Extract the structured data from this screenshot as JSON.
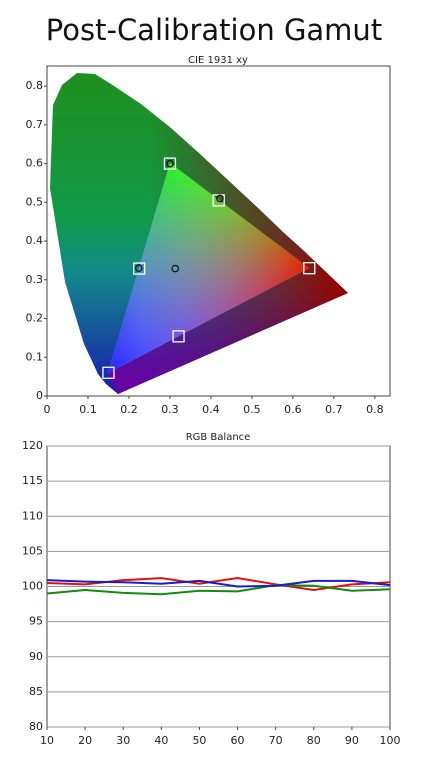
{
  "title": "Post-Calibration Gamut",
  "chart_data": [
    {
      "type": "scatter",
      "title": "CIE 1931 xy",
      "xlim": [
        0,
        0.837
      ],
      "ylim": [
        0,
        0.852
      ],
      "xticks": [
        0,
        0.1,
        0.2,
        0.3,
        0.4,
        0.5,
        0.6,
        0.7,
        0.8
      ],
      "yticks": [
        0,
        0.1,
        0.2,
        0.3,
        0.4,
        0.5,
        0.6,
        0.7,
        0.8
      ],
      "grid": false,
      "series": [
        {
          "marker": "square",
          "color": "#ffffff",
          "x": [
            0.64,
            0.3,
            0.15,
            0.225,
            0.321,
            0.419
          ],
          "values": [
            0.33,
            0.6,
            0.06,
            0.329,
            0.154,
            0.505
          ]
        },
        {
          "marker": "circle",
          "color": "#111111",
          "x": [
            0.3,
            0.422,
            0.224,
            0.313
          ],
          "values": [
            0.6,
            0.51,
            0.33,
            0.329
          ]
        }
      ]
    },
    {
      "type": "line",
      "title": "RGB Balance",
      "x": [
        10,
        20,
        30,
        40,
        50,
        60,
        70,
        80,
        90,
        100
      ],
      "xlim": [
        10,
        100
      ],
      "ylim": [
        80,
        120
      ],
      "xticks": [
        10,
        20,
        30,
        40,
        50,
        60,
        70,
        80,
        90,
        100
      ],
      "yticks": [
        80,
        85,
        90,
        95,
        100,
        105,
        110,
        115,
        120
      ],
      "grid": true,
      "series": [
        {
          "color": "#e01010",
          "values": [
            100.5,
            100.3,
            100.9,
            101.2,
            100.4,
            101.2,
            100.3,
            99.5,
            100.3,
            100.6
          ]
        },
        {
          "color": "#138a13",
          "values": [
            99.0,
            99.5,
            99.1,
            98.9,
            99.4,
            99.3,
            100.2,
            100.1,
            99.4,
            99.6
          ]
        },
        {
          "color": "#1a1ad0",
          "values": [
            100.9,
            100.7,
            100.6,
            100.4,
            100.8,
            100.0,
            100.1,
            100.8,
            100.8,
            100.2
          ]
        }
      ]
    }
  ]
}
